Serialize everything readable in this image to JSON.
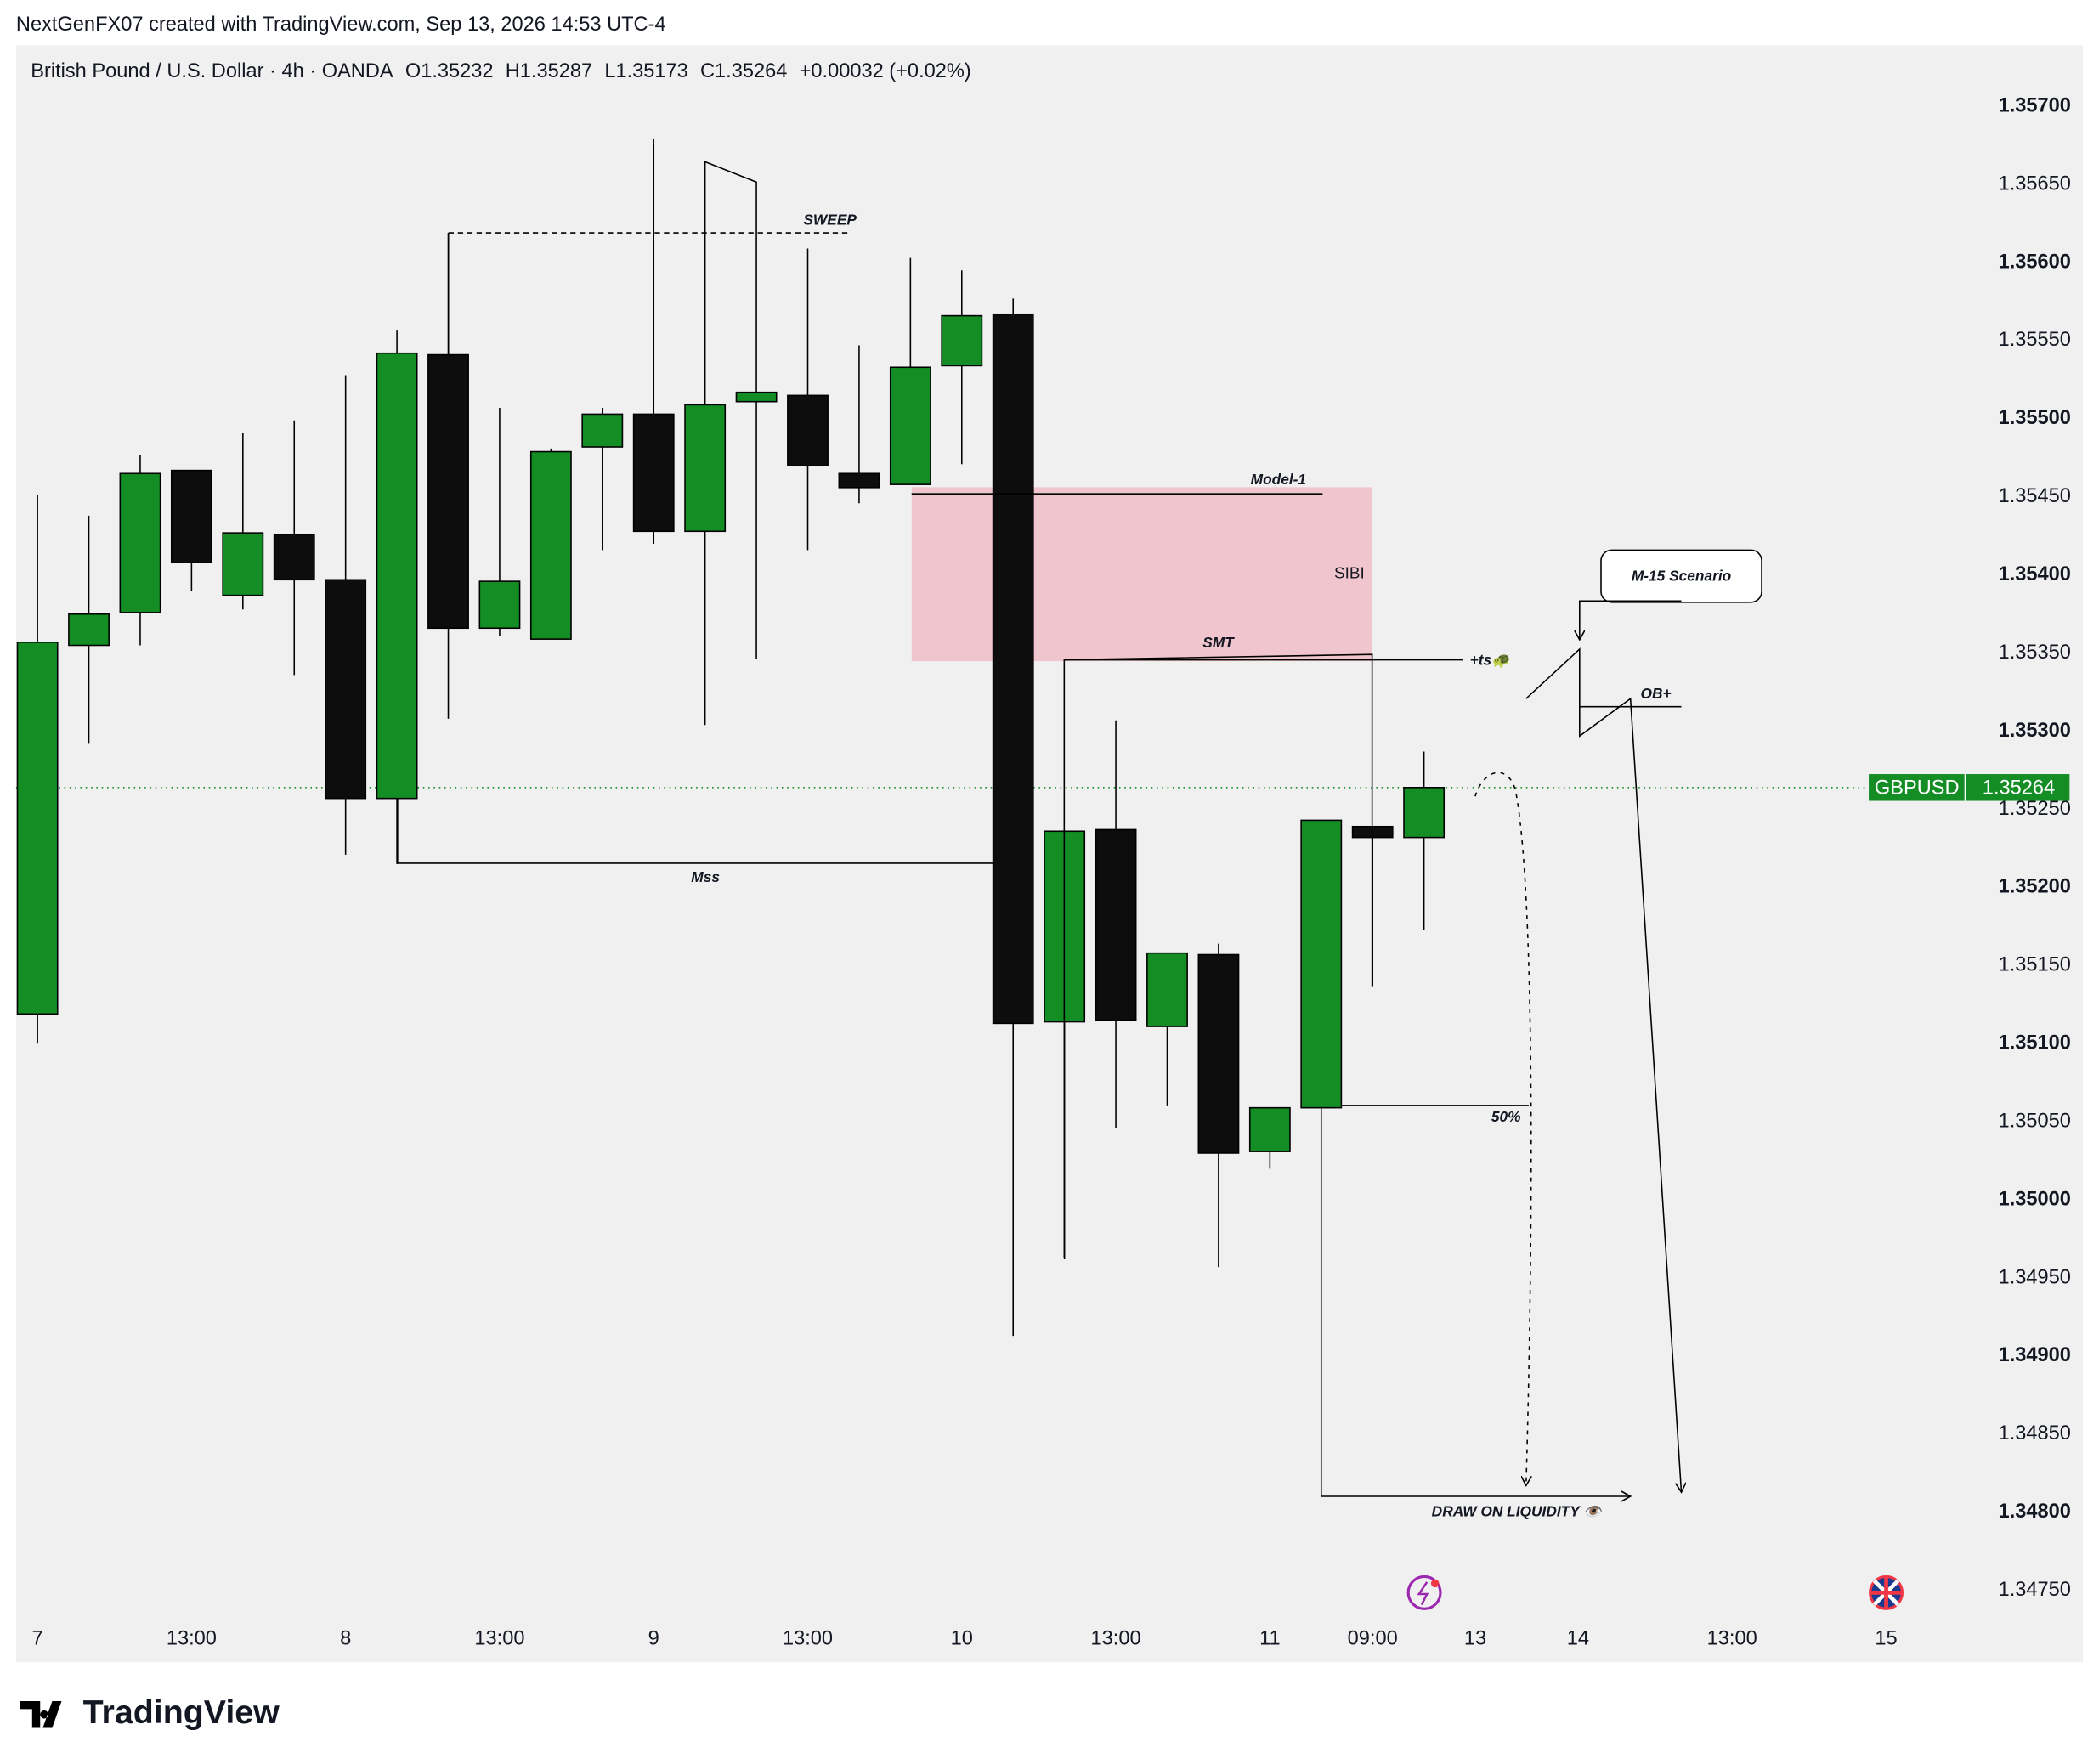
{
  "header": {
    "attribution": "NextGenFX07 created with TradingView.com, Sep 13, 2026 14:53 UTC-4"
  },
  "chart_data": {
    "type": "candlestick",
    "title": "British Pound / U.S. Dollar · 4h · OANDA",
    "ohlc_labels": [
      "O1.35232",
      "H1.35287",
      "L1.35173",
      "C1.35264"
    ],
    "change": "+0.00032 (+0.02%)",
    "categories": [
      "7",
      null,
      null,
      "13:00",
      null,
      null,
      "8",
      null,
      null,
      "13:00",
      null,
      null,
      "9",
      null,
      null,
      "13:00",
      null,
      null,
      "10",
      null,
      null,
      "13:00",
      null,
      null,
      "11",
      null,
      "09:00",
      null,
      "13",
      null,
      "14",
      null,
      null,
      "13:00",
      null,
      null,
      "15"
    ],
    "open": [
      1.35119,
      1.35355,
      1.35376,
      1.35467,
      1.35387,
      1.35426,
      1.35397,
      1.35257,
      1.35541,
      1.35366,
      1.35359,
      1.35482,
      1.35503,
      1.35428,
      1.35511,
      1.35515,
      1.35465,
      1.35458,
      1.35534,
      1.35567,
      1.35114,
      1.35237,
      1.35111,
      1.35157,
      1.35031,
      1.35059,
      1.35239,
      1.35232,
      null,
      null,
      null,
      null,
      null,
      null,
      null,
      null,
      null
    ],
    "high": [
      1.35451,
      1.35438,
      1.35477,
      1.35467,
      1.35491,
      1.35499,
      1.35528,
      1.35557,
      1.35619,
      1.35507,
      1.35481,
      1.35507,
      1.35679,
      1.35665,
      1.35652,
      1.35609,
      1.35547,
      1.35603,
      1.35595,
      1.35577,
      1.35236,
      1.35307,
      1.35158,
      1.35164,
      1.35059,
      1.35243,
      1.35239,
      1.35287,
      null,
      null,
      null,
      null,
      null,
      null,
      null,
      null,
      null
    ],
    "low": [
      1.351,
      1.35292,
      1.35355,
      1.3539,
      1.35378,
      1.35336,
      1.35221,
      1.35215,
      1.35308,
      1.35361,
      1.35359,
      1.35416,
      1.3542,
      1.35304,
      1.35346,
      1.35416,
      1.35446,
      1.35458,
      1.35471,
      1.34913,
      1.34962,
      1.35046,
      1.3506,
      1.34957,
      1.3502,
      1.35059,
      1.35137,
      1.35173,
      null,
      null,
      null,
      null,
      null,
      null,
      null,
      null,
      null
    ],
    "close": [
      1.35357,
      1.35375,
      1.35465,
      1.35408,
      1.35427,
      1.35397,
      1.35257,
      1.35542,
      1.35366,
      1.35396,
      1.35479,
      1.35503,
      1.35428,
      1.35509,
      1.35517,
      1.3547,
      1.35456,
      1.35533,
      1.35566,
      1.35113,
      1.35236,
      1.35115,
      1.35158,
      1.3503,
      1.35059,
      1.35243,
      1.35232,
      1.35264,
      null,
      null,
      null,
      null,
      null,
      null,
      null,
      null,
      null
    ],
    "up_color": "#138d24",
    "down_color": "#0d0d0d",
    "ylim": [
      1.34704,
      1.35739
    ],
    "yticks": [
      {
        "value": 1.357,
        "label": "1.35700"
      },
      {
        "value": 1.3565,
        "label": "1.35650"
      },
      {
        "value": 1.356,
        "label": "1.35600"
      },
      {
        "value": 1.3555,
        "label": "1.35550"
      },
      {
        "value": 1.355,
        "label": "1.35500"
      },
      {
        "value": 1.3545,
        "label": "1.35450"
      },
      {
        "value": 1.354,
        "label": "1.35400"
      },
      {
        "value": 1.3535,
        "label": "1.35350"
      },
      {
        "value": 1.353,
        "label": "1.35300"
      },
      {
        "value": 1.3525,
        "label": "1.35250"
      },
      {
        "value": 1.352,
        "label": "1.35200"
      },
      {
        "value": 1.3515,
        "label": "1.35150"
      },
      {
        "value": 1.351,
        "label": "1.35100"
      },
      {
        "value": 1.3505,
        "label": "1.35050"
      },
      {
        "value": 1.35,
        "label": "1.35000"
      },
      {
        "value": 1.3495,
        "label": "1.34950"
      },
      {
        "value": 1.349,
        "label": "1.34900"
      },
      {
        "value": 1.3485,
        "label": "1.34850"
      },
      {
        "value": 1.348,
        "label": "1.34800"
      },
      {
        "value": 1.3475,
        "label": "1.34750"
      }
    ],
    "last_price": {
      "symbol": "GBPUSD",
      "value": 1.35264,
      "color": "#138d24"
    },
    "annotations": {
      "sweep": "SWEEP",
      "model": "Model-1",
      "sibi": "SIBI",
      "smt": "SMT",
      "ts": "+ts🐢",
      "mss": "Mss",
      "half": "50%",
      "dol": "DRAW ON LIQUIDITY 👁️",
      "scenario": "M-15 Scenario",
      "ob": "OB+"
    }
  },
  "footer": {
    "logo": "TradingView"
  }
}
